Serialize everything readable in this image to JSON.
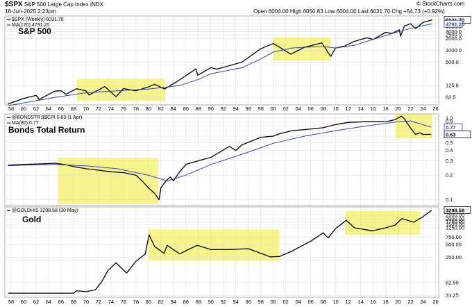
{
  "header": {
    "symbol": "$SPX",
    "name": "S&P 500 Large Cap Index",
    "exchange": "INDX",
    "date": "16-Jun-2025 2:23pm",
    "quote": "Open 6004.00  High 6050.83  Low 6004.00  Last 6031.70  Chg +54.73 (+0.92%)",
    "watermark": "© StockCharts.com"
  },
  "colors": {
    "price": "#000000",
    "ma": "#3344aa",
    "highlight": "#f6f27a",
    "grid": "#d9d9d9",
    "last_box": "#000000"
  },
  "chart_data": [
    {
      "type": "line",
      "title": "S&P 500",
      "legend": [
        "$SPX (Weekly) 6031.70",
        "MA(170) 4791.20"
      ],
      "scale": "log",
      "y_ticks": [
        62.5,
        125,
        500,
        1000,
        2000,
        2500,
        3000,
        4000,
        5000,
        6000
      ],
      "y_tick_labels": [
        "62.5",
        "125.0",
        "500.0",
        "1000.0",
        "2000.0",
        "2500.0",
        "3000.0",
        "4000.0",
        "5000.0",
        "6000.0"
      ],
      "last_value_label": "6031.70",
      "ma_value_label": "4791.20",
      "highlights": [
        [
          1968.5,
          1982.7
        ],
        [
          2000.0,
          2009.2
        ]
      ],
      "series": [
        {
          "name": "$SPX",
          "x": [
            1957.5,
            1960,
            1962,
            1962.5,
            1965,
            1966,
            1966.8,
            1968.5,
            1970,
            1970.5,
            1973,
            1974.8,
            1976,
            1978,
            1980,
            1981,
            1982.6,
            1985,
            1987.6,
            1987.9,
            1990,
            1991,
            1995,
            1998,
            2000,
            2002.8,
            2005,
            2007.8,
            2009.2,
            2010,
            2011.5,
            2013,
            2015,
            2016,
            2018,
            2019,
            2020.2,
            2020.4,
            2021,
            2022,
            2022.8,
            2024,
            2025.45
          ],
          "values": [
            42,
            58,
            70,
            55,
            90,
            92,
            75,
            104,
            92,
            72,
            118,
            65,
            105,
            92,
            115,
            135,
            102,
            175,
            335,
            230,
            360,
            330,
            500,
            1100,
            1500,
            800,
            1200,
            1550,
            700,
            1150,
            1300,
            1700,
            2100,
            1900,
            2900,
            2700,
            3380,
            2300,
            4200,
            4800,
            3600,
            5200,
            6031.7
          ]
        },
        {
          "name": "MA(170)",
          "x": [
            1957.5,
            1960,
            1965,
            1970,
            1975,
            1980,
            1985,
            1988,
            1990,
            1995,
            1998,
            2000,
            2003,
            2005,
            2008,
            2010,
            2013,
            2015,
            2018,
            2020,
            2023,
            2025.45
          ],
          "values": [
            38,
            45,
            62,
            82,
            92,
            102,
            125,
            180,
            250,
            360,
            600,
            900,
            1150,
            1200,
            1250,
            1150,
            1350,
            1700,
            2400,
            3000,
            4000,
            4791.2
          ]
        }
      ]
    },
    {
      "type": "line",
      "title": "Bonds Total Return",
      "legend": [
        "@BONDSTR:$$CPI 0.63 (1 Apr)",
        "MA(80) 0.77"
      ],
      "scale": "log",
      "y_ticks": [
        0.1,
        0.2,
        0.3,
        0.4,
        0.5,
        0.6,
        0.7,
        0.8,
        0.9,
        1.0
      ],
      "y_tick_labels": [
        "0.1",
        "0.2",
        "0.3",
        "0.4",
        "0.5",
        "0.6",
        "0.7",
        "0.8",
        "0.9",
        "1.0"
      ],
      "last_value_label": "0.63",
      "ma_value_label": "0.77",
      "highlights": [
        [
          1965.5,
          1981.6
        ],
        [
          2019.6,
          2025.45
        ]
      ],
      "series": [
        {
          "name": "@BONDSTR:$$CPI",
          "x": [
            1957.5,
            1960,
            1963,
            1965,
            1966.5,
            1968,
            1970,
            1972,
            1974,
            1976,
            1978,
            1979,
            1980,
            1981,
            1981.7,
            1982,
            1982.8,
            1983.5,
            1984,
            1985,
            1986,
            1988,
            1990,
            1993,
            1994,
            1995,
            1998,
            2000,
            2001,
            2003,
            2005,
            2008,
            2010,
            2012,
            2015,
            2018,
            2019.5,
            2020.5,
            2021,
            2022,
            2022.8,
            2023.5,
            2024,
            2025.3
          ],
          "values": [
            0.265,
            0.27,
            0.275,
            0.28,
            0.27,
            0.255,
            0.24,
            0.23,
            0.22,
            0.215,
            0.2,
            0.17,
            0.14,
            0.12,
            0.1,
            0.14,
            0.17,
            0.19,
            0.17,
            0.22,
            0.27,
            0.3,
            0.33,
            0.45,
            0.4,
            0.47,
            0.58,
            0.6,
            0.64,
            0.7,
            0.72,
            0.76,
            0.83,
            0.88,
            0.9,
            0.9,
            0.95,
            1.05,
            0.98,
            0.75,
            0.63,
            0.66,
            0.63,
            0.63
          ]
        },
        {
          "name": "MA(80)",
          "x": [
            1957.5,
            1960,
            1965,
            1970,
            1975,
            1980,
            1983,
            1986,
            1990,
            1995,
            2000,
            2005,
            2010,
            2015,
            2020,
            2022,
            2025.3
          ],
          "values": [
            0.26,
            0.265,
            0.27,
            0.26,
            0.24,
            0.2,
            0.17,
            0.2,
            0.27,
            0.36,
            0.49,
            0.6,
            0.7,
            0.8,
            0.9,
            0.92,
            0.77
          ]
        }
      ]
    },
    {
      "type": "line",
      "title": "Gold",
      "legend": [
        "@GOLDHIS 3288.58 (30 May)"
      ],
      "scale": "log",
      "y_ticks": [
        31.25,
        62.5,
        250,
        500,
        750,
        1250,
        1500,
        1750,
        2000,
        2500
      ],
      "y_tick_labels": [
        "31.25",
        "62.50",
        "250.00",
        "500.00",
        "750.00",
        "1250.00",
        "1500.00",
        "1750.00",
        "2000.00",
        "2500.00"
      ],
      "last_value_label": "3288.58",
      "highlights": [
        [
          1980.0,
          2001.0
        ],
        [
          2011.5,
          2023.5
        ]
      ],
      "series": [
        {
          "name": "@GOLDHIS",
          "x": [
            1957.5,
            1968,
            1968.5,
            1970,
            1971.5,
            1972.5,
            1973.5,
            1974.8,
            1976.5,
            1978,
            1979.5,
            1980.1,
            1981,
            1982.5,
            1983,
            1985,
            1987.8,
            1990,
            1993,
            1996,
            1999.5,
            2001,
            2003,
            2006,
            2008,
            2008.8,
            2010,
            2011.7,
            2013,
            2015.9,
            2018,
            2019.5,
            2020.6,
            2022.5,
            2024,
            2025.4
          ],
          "values": [
            35,
            35,
            40,
            38,
            42,
            65,
            120,
            185,
            105,
            200,
            300,
            850,
            450,
            310,
            480,
            300,
            480,
            380,
            380,
            400,
            255,
            260,
            350,
            600,
            950,
            720,
            1200,
            1890,
            1250,
            1060,
            1250,
            1450,
            2060,
            1700,
            2300,
            3288.58
          ]
        }
      ]
    }
  ],
  "x_axis": {
    "tick_labels": [
      "58",
      "60",
      "62",
      "64",
      "66",
      "68",
      "70",
      "72",
      "74",
      "76",
      "78",
      "80",
      "82",
      "84",
      "86",
      "88",
      "90",
      "92",
      "94",
      "96",
      "98",
      "00",
      "02",
      "04",
      "06",
      "08",
      "10",
      "12",
      "14",
      "16",
      "18",
      "20",
      "22",
      "24",
      "26"
    ]
  }
}
